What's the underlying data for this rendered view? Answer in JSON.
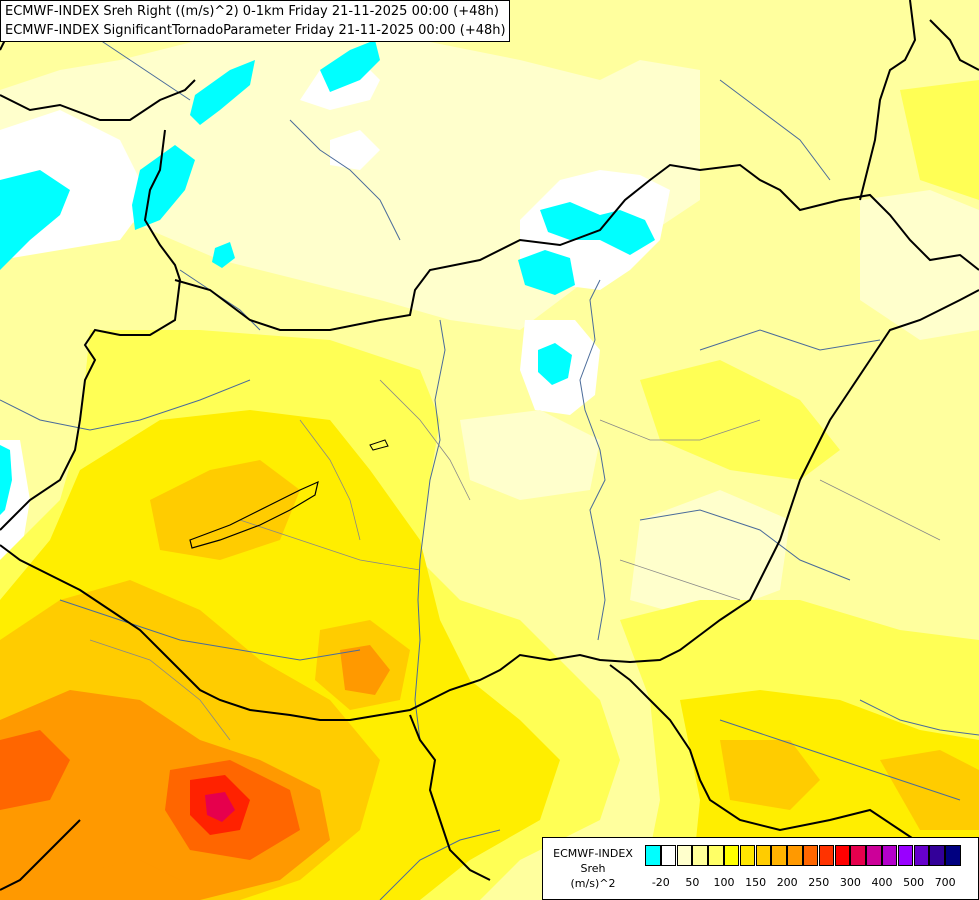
{
  "title": {
    "line1": "ECMWF-INDEX Sreh Right ((m/s)^2) 0-1km Friday 21-11-2025 00:00 (+48h)",
    "line2": "ECMWF-INDEX SignificantTornadoParameter Friday 21-11-2025 00:00 (+48h)"
  },
  "legend": {
    "name_lines": [
      "ECMWF-INDEX",
      "Sreh",
      "(m/s)^2"
    ],
    "colors": [
      "#00ffff",
      "#ffffff",
      "#ffffcc",
      "#ffff99",
      "#ffff66",
      "#ffff00",
      "#ffe600",
      "#ffcc00",
      "#ffb300",
      "#ff9900",
      "#ff6600",
      "#ff3300",
      "#ff0000",
      "#e6004d",
      "#cc0099",
      "#b300cc",
      "#9900ff",
      "#6600cc",
      "#330099",
      "#000080"
    ],
    "tick_labels": [
      "-20",
      "50",
      "100",
      "150",
      "200",
      "250",
      "300",
      "400",
      "500",
      "700"
    ]
  }
}
